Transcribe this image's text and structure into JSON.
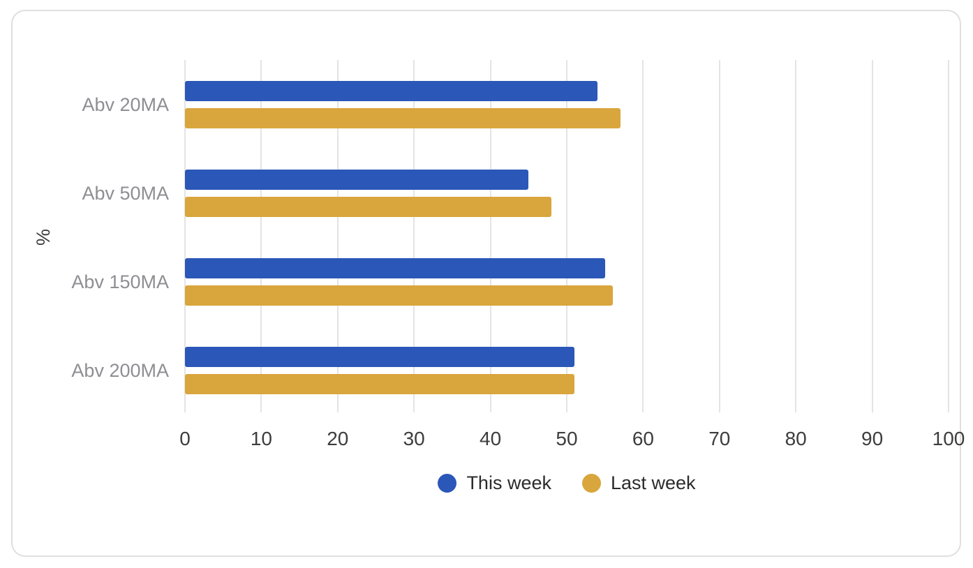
{
  "chart_data": {
    "type": "bar",
    "orientation": "horizontal",
    "title": "",
    "xlabel": "",
    "ylabel": "%",
    "categories": [
      "Abv 20MA",
      "Abv 50MA",
      "Abv 150MA",
      "Abv 200MA"
    ],
    "series": [
      {
        "name": "This week",
        "color": "#2B57B8",
        "values": [
          54,
          45,
          55,
          51
        ]
      },
      {
        "name": "Last week",
        "color": "#D9A53D",
        "values": [
          57,
          48,
          56,
          51
        ]
      }
    ],
    "xlim": [
      0,
      100
    ],
    "x_ticks": [
      0,
      10,
      20,
      30,
      40,
      50,
      60,
      70,
      80,
      90,
      100
    ],
    "grid": "vertical",
    "legend_position": "bottom"
  },
  "colors": {
    "gridline": "#E4E4E4",
    "category_label": "#8E8E93",
    "tick_label": "#3D3D3D",
    "legend_text": "#2B2B2B",
    "card_border": "#DFDFDF",
    "background": "#FFFFFF"
  }
}
